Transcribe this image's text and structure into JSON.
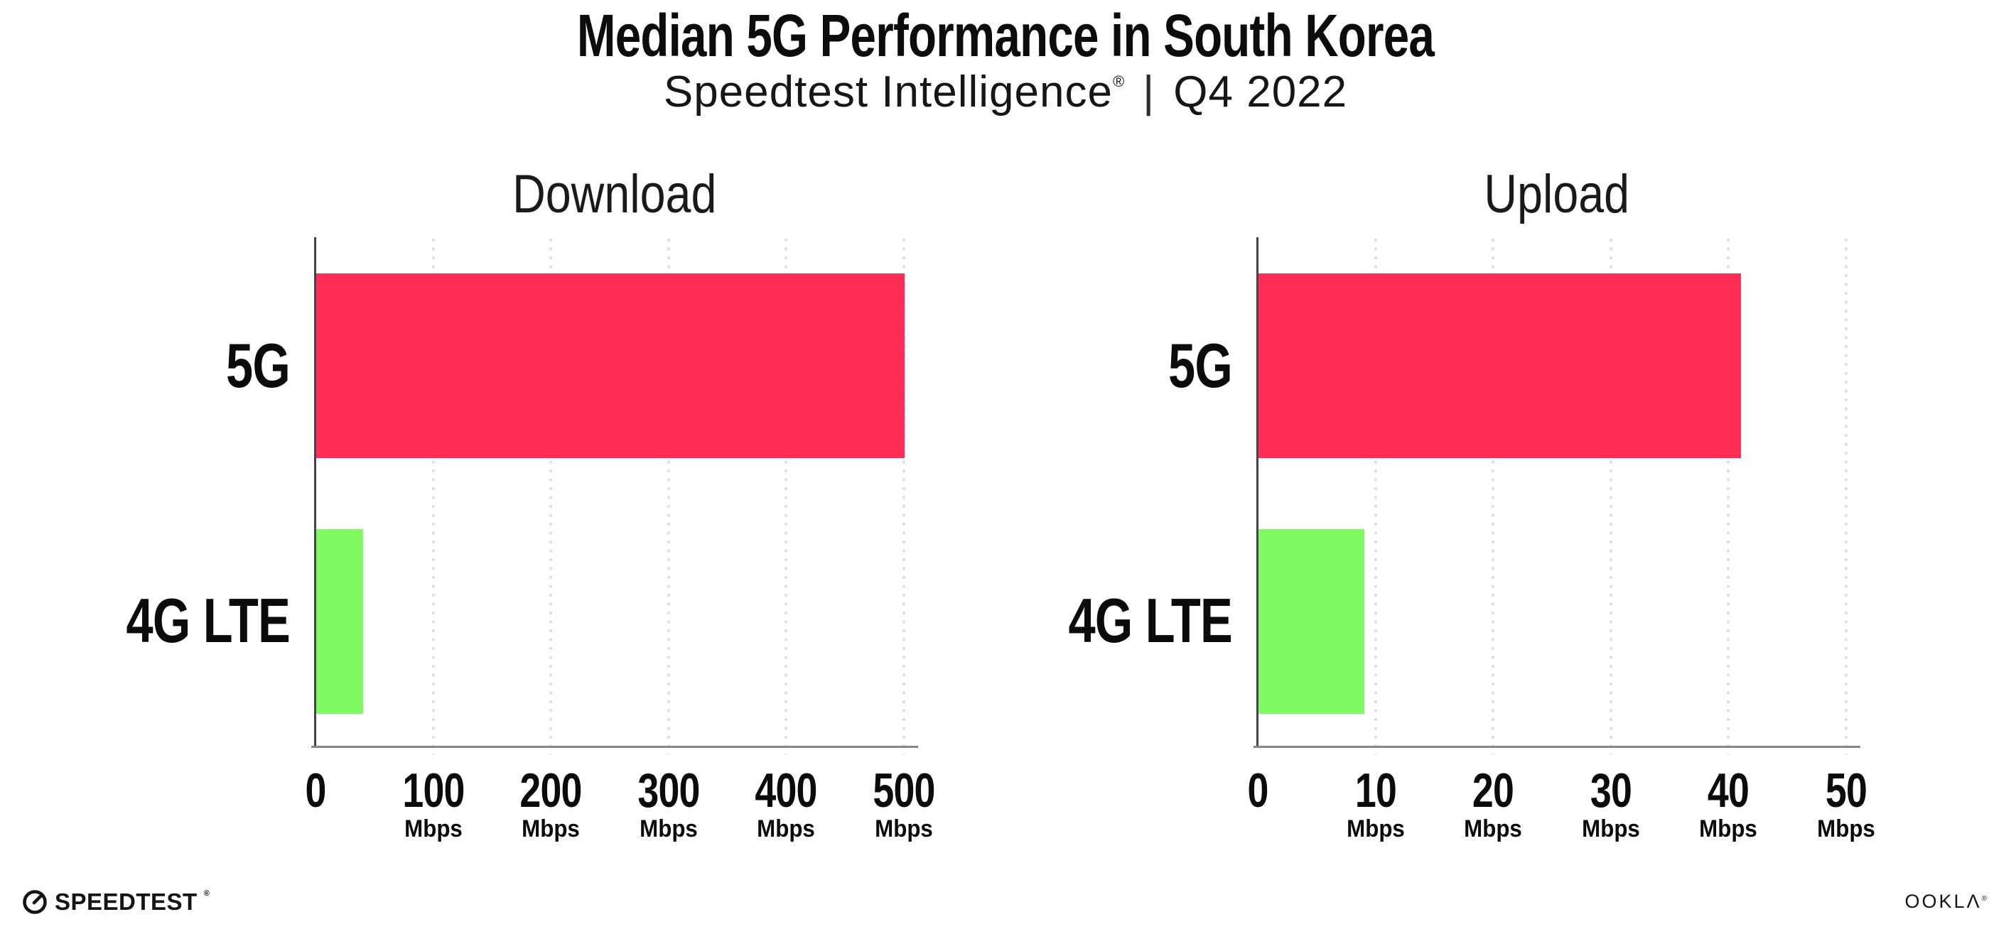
{
  "header": {
    "title": "Median 5G Performance in South Korea",
    "subtitle_brand": "Speedtest Intelligence",
    "subtitle_reg": "®",
    "subtitle_separator": "|",
    "subtitle_period": "Q4 2022"
  },
  "chart_data": [
    {
      "type": "bar",
      "orientation": "horizontal",
      "title": "Download",
      "categories": [
        "5G",
        "4G LTE"
      ],
      "values": [
        500,
        40
      ],
      "unit": "Mbps",
      "ticks": [
        0,
        100,
        200,
        300,
        400,
        500
      ],
      "tick_unit_label": "Mbps",
      "xlim": [
        0,
        500
      ],
      "bar_colors": [
        "#fd2d55",
        "#7ffb61"
      ],
      "grid": "dotted-vertical",
      "legend": false
    },
    {
      "type": "bar",
      "orientation": "horizontal",
      "title": "Upload",
      "categories": [
        "5G",
        "4G LTE"
      ],
      "values": [
        41,
        9
      ],
      "unit": "Mbps",
      "ticks": [
        0,
        10,
        20,
        30,
        40,
        50
      ],
      "tick_unit_label": "Mbps",
      "xlim": [
        0,
        50
      ],
      "bar_colors": [
        "#fd2d55",
        "#7ffb61"
      ],
      "grid": "dotted-vertical",
      "legend": false
    }
  ],
  "colors": {
    "bar_5g": "#fd2d55",
    "bar_4g_lte": "#7ffb61",
    "axis_spine": "#46414e",
    "axis_line": "#87868d",
    "gridline": "#dfdfe8",
    "text": "#0c0c0c",
    "background": "#ffffff"
  },
  "footer": {
    "speedtest_label": "SPEEDTEST",
    "speedtest_reg": "®",
    "ookla_label": "OOKLΛ",
    "ookla_reg": "®"
  }
}
